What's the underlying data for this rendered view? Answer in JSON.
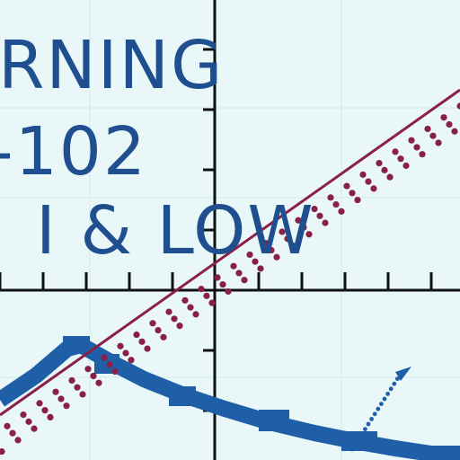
{
  "title": {
    "line1": "RNING",
    "line2": "-102",
    "line3": "I & LOW"
  },
  "colors": {
    "background": "#e9f7f8",
    "text": "#1f4f8f",
    "axis": "#111111",
    "maroon_line": "#8a2048",
    "blue_band": "#1f5fa8",
    "grid": "#cfe6ea"
  }
}
